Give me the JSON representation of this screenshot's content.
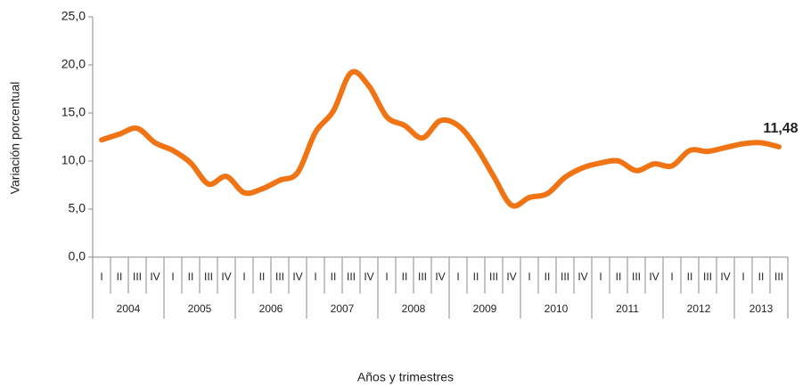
{
  "chart_data": {
    "type": "line",
    "y_label": "Variación porcentual",
    "x_label": "Años y trimestres",
    "categories": [
      "I",
      "II",
      "III",
      "IV",
      "I",
      "II",
      "III",
      "IV",
      "I",
      "II",
      "III",
      "IV",
      "I",
      "II",
      "III",
      "IV",
      "I",
      "II",
      "III",
      "IV",
      "I",
      "II",
      "III",
      "IV",
      "I",
      "II",
      "III",
      "IV",
      "I",
      "II",
      "III",
      "IV",
      "I",
      "II",
      "III",
      "IV",
      "I",
      "II",
      "III"
    ],
    "years": [
      "2004",
      "2005",
      "2006",
      "2007",
      "2008",
      "2009",
      "2010",
      "2011",
      "2012",
      "2013"
    ],
    "values": [
      12.2,
      12.8,
      13.4,
      11.9,
      11.1,
      9.8,
      7.6,
      8.4,
      6.7,
      7.1,
      8.0,
      8.8,
      13.0,
      15.2,
      19.2,
      17.8,
      14.6,
      13.7,
      12.4,
      14.2,
      13.7,
      11.5,
      8.4,
      5.4,
      6.2,
      6.6,
      8.3,
      9.3,
      9.8,
      10.0,
      9.0,
      9.7,
      9.5,
      11.1,
      11.0,
      11.4,
      11.8,
      11.9,
      11.48
    ],
    "value_labels": [
      null,
      null,
      null,
      null,
      null,
      null,
      null,
      null,
      null,
      null,
      null,
      null,
      null,
      null,
      null,
      null,
      null,
      null,
      null,
      null,
      null,
      null,
      null,
      null,
      null,
      null,
      null,
      null,
      null,
      null,
      null,
      null,
      null,
      null,
      null,
      null,
      null,
      null,
      "11,48"
    ],
    "color": "#f07314",
    "ylim": [
      0,
      25
    ],
    "yticks": [
      {
        "value": 0,
        "label": "0,0"
      },
      {
        "value": 5,
        "label": "5,0"
      },
      {
        "value": 10,
        "label": "10,0"
      },
      {
        "value": 15,
        "label": "15,0"
      },
      {
        "value": 20,
        "label": "20,0"
      },
      {
        "value": 25,
        "label": "25,0"
      }
    ]
  }
}
